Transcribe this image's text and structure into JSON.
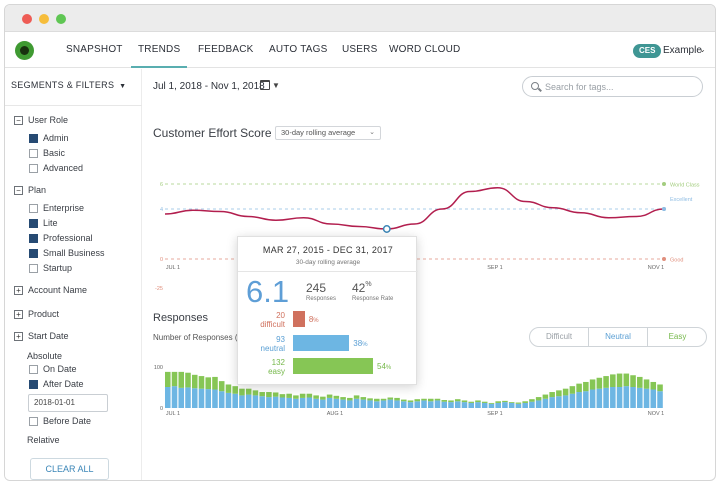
{
  "nav": {
    "items": [
      "SNAPSHOT",
      "TRENDS",
      "FEEDBACK",
      "AUTO TAGS",
      "USERS",
      "WORD CLOUD"
    ],
    "active": "TRENDS",
    "badge": "CES",
    "account": "Example"
  },
  "sidebar": {
    "header": "SEGMENTS & FILTERS",
    "user_role": {
      "label": "User Role",
      "options": [
        {
          "label": "Admin",
          "checked": true
        },
        {
          "label": "Basic",
          "checked": false
        },
        {
          "label": "Advanced",
          "checked": false
        }
      ]
    },
    "plan": {
      "label": "Plan",
      "options": [
        {
          "label": "Enterprise",
          "checked": false
        },
        {
          "label": "Lite",
          "checked": true
        },
        {
          "label": "Professional",
          "checked": true
        },
        {
          "label": "Small Business",
          "checked": true
        },
        {
          "label": "Startup",
          "checked": false
        }
      ]
    },
    "account_name": "Account Name",
    "product": "Product",
    "start_date": "Start Date",
    "absolute": "Absolute",
    "on_date": "On Date",
    "after_date": "After Date",
    "after_date_value": "2018-01-01",
    "before_date": "Before Date",
    "relative": "Relative",
    "clear_all": "CLEAR ALL",
    "signs": {
      "minus": "−",
      "plus": "+"
    }
  },
  "main": {
    "date_range": "Jul 1, 2018 - Nov 1, 2018",
    "search_placeholder": "Search for tags...",
    "ces_title": "Customer Effort Score",
    "rolling_option": "30-day rolling average",
    "responses_title": "Responses",
    "responses_sub": "Number of Responses (",
    "tabs": [
      "Difficult",
      "Neutral",
      "Easy"
    ]
  },
  "tooltip": {
    "range": "MAR 27, 2015 - DEC 31, 2017",
    "sub": "30-day rolling average",
    "score": "6.1",
    "responses_count": "245",
    "responses_label": "Responses",
    "rate": "42",
    "rate_unit": "%",
    "rate_label": "Response Rate",
    "rows": [
      {
        "count": "20",
        "label": "difficult",
        "pct": "8",
        "fraction": 0.08,
        "color": "#d0715e"
      },
      {
        "count": "93",
        "label": "neutral",
        "pct": "38",
        "fraction": 0.38,
        "color": "#6db6e3"
      },
      {
        "count": "132",
        "label": "easy",
        "pct": "54",
        "fraction": 0.54,
        "color": "#86c655"
      }
    ]
  },
  "colors": {
    "line": "#b21e4e",
    "difficult": "#d0715e",
    "neutral": "#6db6e3",
    "easy": "#86c655",
    "teal": "#3f9694",
    "world_class": "#a3cd7f",
    "excellent": "#8fbde3",
    "good": "#e08f7d"
  },
  "chart_data": [
    {
      "type": "line",
      "title": "Customer Effort Score",
      "x_ticks": [
        "JUL 1",
        "SEP 1",
        "NOV 1"
      ],
      "y_ticks": [
        "6",
        "4",
        "0",
        "-25"
      ],
      "ylim": [
        -25,
        6
      ],
      "reference_lines": [
        {
          "label": "World Class",
          "value": 6,
          "color": "#a3cd7f"
        },
        {
          "label": "Excellent",
          "value": 4,
          "color": "#8fbde3"
        },
        {
          "label": "Good",
          "value": 0,
          "color": "#e08f7d"
        }
      ],
      "series": [
        {
          "values": [
            3.6,
            3.9,
            3.8,
            3.4,
            3.1,
            3.3,
            2.8,
            2.6,
            2.4,
            2.8,
            4.0,
            5.4,
            5.7,
            4.6,
            4.1,
            3.7,
            3.3,
            3.4,
            4.0
          ],
          "color": "#b21e4e"
        }
      ],
      "highlight_index": 8
    },
    {
      "type": "bar",
      "title": "Responses",
      "stacked": true,
      "x_ticks": [
        "JUL 1",
        "AUG 1",
        "SEP 1",
        "NOV 1"
      ],
      "y_ticks": [
        "100",
        "0"
      ],
      "ylim": [
        0,
        100
      ],
      "series": [
        {
          "name": "Neutral",
          "color": "#6db6e3",
          "values": [
            50,
            52,
            48,
            49,
            47,
            46,
            45,
            44,
            40,
            36,
            34,
            30,
            32,
            30,
            28,
            26,
            27,
            25,
            24,
            22,
            24,
            25,
            22,
            20,
            24,
            22,
            20,
            18,
            22,
            20,
            18,
            16,
            18,
            20,
            18,
            16,
            14,
            16,
            18,
            16,
            18,
            15,
            14,
            16,
            14,
            12,
            14,
            12,
            10,
            12,
            14,
            12,
            10,
            12,
            15,
            18,
            22,
            26,
            28,
            30,
            34,
            38,
            40,
            44,
            46,
            48,
            50,
            50,
            52,
            50,
            48,
            46,
            44,
            40
          ]
        },
        {
          "name": "Easy",
          "color": "#86c655",
          "values": [
            36,
            34,
            38,
            35,
            32,
            30,
            28,
            30,
            24,
            20,
            18,
            16,
            14,
            12,
            10,
            12,
            10,
            8,
            10,
            8,
            10,
            9,
            8,
            7,
            8,
            7,
            6,
            6,
            8,
            6,
            5,
            6,
            4,
            5,
            6,
            4,
            4,
            5,
            4,
            6,
            4,
            4,
            4,
            5,
            4,
            3,
            4,
            3,
            2,
            4,
            3,
            2,
            3,
            4,
            6,
            8,
            10,
            12,
            14,
            16,
            18,
            20,
            22,
            24,
            26,
            28,
            30,
            32,
            30,
            28,
            26,
            22,
            18,
            16
          ]
        }
      ]
    }
  ]
}
